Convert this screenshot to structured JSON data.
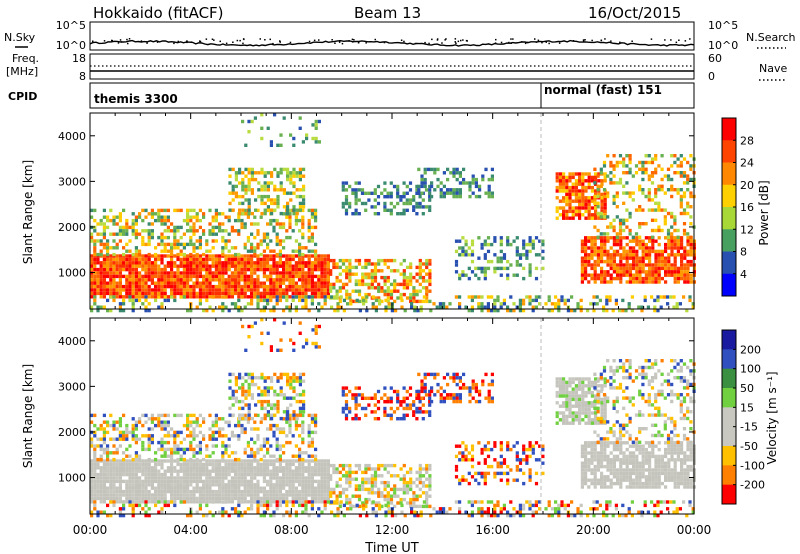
{
  "header": {
    "title": "Hokkaido (fitACF)",
    "beam": "Beam 13",
    "date": "16/Oct/2015"
  },
  "noise_panel": {
    "left_label": "N.Sky",
    "right_label": "N.Search",
    "left_ticks": [
      "10^5",
      "10^0"
    ],
    "right_ticks": [
      "10^5",
      "10^0"
    ]
  },
  "freq_panel": {
    "left_label_line1": "Freq.",
    "left_label_line2": "[MHz]",
    "right_label": "Nave",
    "left_ticks": [
      "18",
      "8"
    ],
    "right_ticks": [
      "60",
      "0"
    ]
  },
  "cpid_panel": {
    "label": "CPID",
    "segments": [
      {
        "name": "themis 3300",
        "start_hour": 0,
        "end_hour": 18
      },
      {
        "name": "normal (fast) 151",
        "start_hour": 18,
        "end_hour": 24
      }
    ]
  },
  "chart_data": [
    {
      "type": "heatmap",
      "title": "",
      "ylabel": "Slant Range [km]",
      "xlabel": "Time UT",
      "quantity": "Power",
      "colorbar_label": "Power [dB]",
      "colorbar_ticks": [
        "28",
        "24",
        "20",
        "16",
        "12",
        "8",
        "4"
      ],
      "colorbar_colors": [
        "#ff0000",
        "#ff4400",
        "#ff8800",
        "#ffd000",
        "#a8d838",
        "#48a060",
        "#2850b0",
        "#0000ff"
      ],
      "y_ticks": [
        "4000",
        "3000",
        "2000",
        "1000"
      ],
      "ylim_km": [
        200,
        4500
      ],
      "x_ticks": [
        "00:00",
        "04:00",
        "08:00",
        "12:00",
        "16:00",
        "20:00",
        "00:00"
      ],
      "xlim_hours": [
        0,
        24
      ]
    },
    {
      "type": "heatmap",
      "title": "",
      "ylabel": "Slant Range [km]",
      "xlabel": "Time UT",
      "quantity": "Velocity",
      "colorbar_label": "Velocity [m s⁻¹]",
      "colorbar_ticks": [
        "200",
        "100",
        "50",
        "15",
        "-15",
        "-50",
        "-100",
        "-200"
      ],
      "colorbar_colors": [
        "#1a1aa0",
        "#3050c0",
        "#3a9040",
        "#70d040",
        "#c8c8c0",
        "#c8c8c0",
        "#ffc000",
        "#ff8000",
        "#ff0000"
      ],
      "y_ticks": [
        "4000",
        "3000",
        "2000",
        "1000"
      ],
      "ylim_km": [
        200,
        4500
      ],
      "x_ticks": [
        "00:00",
        "04:00",
        "08:00",
        "12:00",
        "16:00",
        "20:00",
        "00:00"
      ],
      "xlim_hours": [
        0,
        24
      ]
    }
  ],
  "axis": {
    "x_title": "Time UT"
  }
}
